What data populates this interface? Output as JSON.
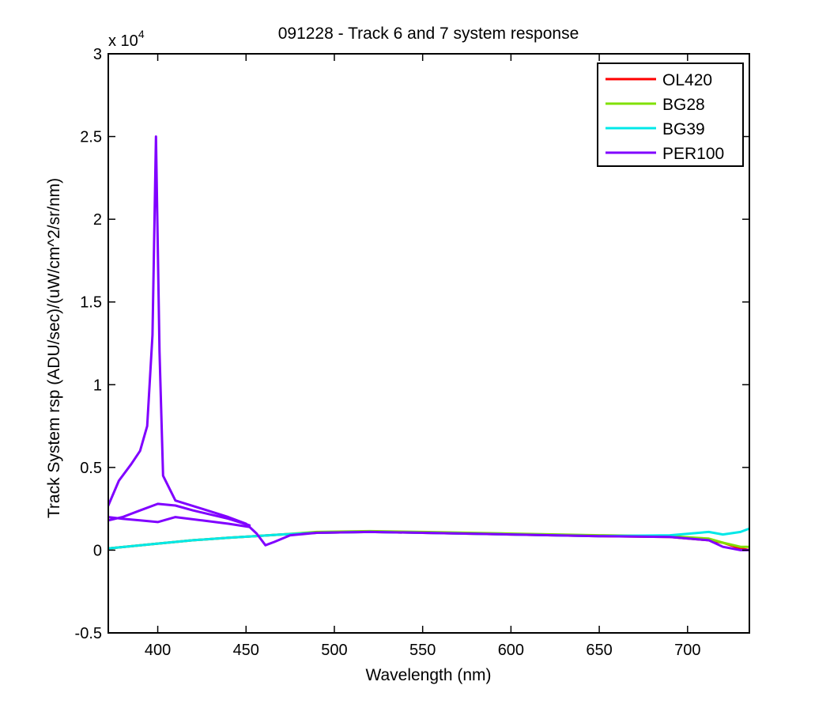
{
  "chart_data": {
    "type": "line",
    "title": "091228 - Track 6 and 7 system response",
    "xlabel": "Wavelength (nm)",
    "ylabel": "Track System rsp (ADU/sec)/(uW/cm^2/sr/nm)",
    "y_multiplier": "x 10",
    "y_multiplier_exponent": "4",
    "xlim": [
      372,
      735
    ],
    "ylim": [
      -0.5,
      3
    ],
    "y_scale_factor": 10000,
    "xticks": [
      400,
      450,
      500,
      550,
      600,
      650,
      700
    ],
    "yticks": [
      -0.5,
      0,
      0.5,
      1,
      1.5,
      2,
      2.5,
      3
    ],
    "yticklabels": [
      "-0.5",
      "0",
      "0.5",
      "1",
      "1.5",
      "2",
      "2.5",
      "3"
    ],
    "grid": false,
    "legend_position": "top-right",
    "series": [
      {
        "name": "OL420",
        "color": "#ff0000",
        "points": [
          [
            372,
            0.01
          ],
          [
            400,
            0.04
          ],
          [
            420,
            0.06
          ],
          [
            440,
            0.075
          ],
          [
            455,
            0.085
          ],
          [
            470,
            0.095
          ],
          [
            490,
            0.105
          ],
          [
            520,
            0.11
          ],
          [
            550,
            0.105
          ],
          [
            600,
            0.095
          ],
          [
            650,
            0.085
          ],
          [
            690,
            0.08
          ],
          [
            712,
            0.06
          ],
          [
            720,
            0.045
          ],
          [
            730,
            0.01
          ],
          [
            735,
            0.0
          ]
        ]
      },
      {
        "name": "BG28",
        "color": "#80e000",
        "points": [
          [
            372,
            0.01
          ],
          [
            400,
            0.04
          ],
          [
            420,
            0.06
          ],
          [
            440,
            0.075
          ],
          [
            455,
            0.085
          ],
          [
            470,
            0.095
          ],
          [
            490,
            0.11
          ],
          [
            520,
            0.115
          ],
          [
            550,
            0.11
          ],
          [
            600,
            0.1
          ],
          [
            650,
            0.09
          ],
          [
            690,
            0.085
          ],
          [
            712,
            0.07
          ],
          [
            720,
            0.045
          ],
          [
            730,
            0.02
          ],
          [
            735,
            0.02
          ]
        ]
      },
      {
        "name": "BG39",
        "color": "#00e8e8",
        "points": [
          [
            372,
            0.01
          ],
          [
            400,
            0.04
          ],
          [
            420,
            0.06
          ],
          [
            440,
            0.075
          ],
          [
            455,
            0.085
          ],
          [
            470,
            0.095
          ],
          [
            490,
            0.105
          ],
          [
            520,
            0.11
          ],
          [
            550,
            0.105
          ],
          [
            600,
            0.095
          ],
          [
            650,
            0.085
          ],
          [
            690,
            0.09
          ],
          [
            712,
            0.11
          ],
          [
            720,
            0.095
          ],
          [
            730,
            0.11
          ],
          [
            735,
            0.13
          ]
        ]
      },
      {
        "name": "PER100",
        "color": "#8000ff",
        "points": [
          [
            372,
            0.27
          ],
          [
            378,
            0.42
          ],
          [
            385,
            0.52
          ],
          [
            390,
            0.6
          ],
          [
            394,
            0.75
          ],
          [
            397,
            1.3
          ],
          [
            399,
            2.5
          ],
          [
            401,
            1.2
          ],
          [
            403,
            0.45
          ],
          [
            410,
            0.3
          ],
          [
            425,
            0.25
          ],
          [
            440,
            0.2
          ],
          [
            450,
            0.16
          ],
          [
            456,
            0.1
          ],
          [
            461,
            0.03
          ],
          [
            466,
            0.05
          ],
          [
            475,
            0.09
          ],
          [
            490,
            0.105
          ],
          [
            520,
            0.11
          ],
          [
            550,
            0.105
          ],
          [
            600,
            0.095
          ],
          [
            650,
            0.085
          ],
          [
            690,
            0.08
          ],
          [
            712,
            0.06
          ],
          [
            720,
            0.02
          ],
          [
            730,
            0.0
          ],
          [
            735,
            0.0
          ]
        ]
      },
      {
        "name": "",
        "color": "#8000ff",
        "points": [
          [
            372,
            0.18
          ],
          [
            380,
            0.2
          ],
          [
            390,
            0.24
          ],
          [
            400,
            0.28
          ],
          [
            410,
            0.27
          ],
          [
            420,
            0.24
          ],
          [
            440,
            0.19
          ],
          [
            452,
            0.15
          ]
        ]
      },
      {
        "name": "",
        "color": "#8000ff",
        "points": [
          [
            372,
            0.2
          ],
          [
            380,
            0.19
          ],
          [
            390,
            0.18
          ],
          [
            400,
            0.17
          ],
          [
            410,
            0.2
          ],
          [
            425,
            0.18
          ],
          [
            440,
            0.16
          ],
          [
            452,
            0.14
          ]
        ]
      }
    ]
  }
}
